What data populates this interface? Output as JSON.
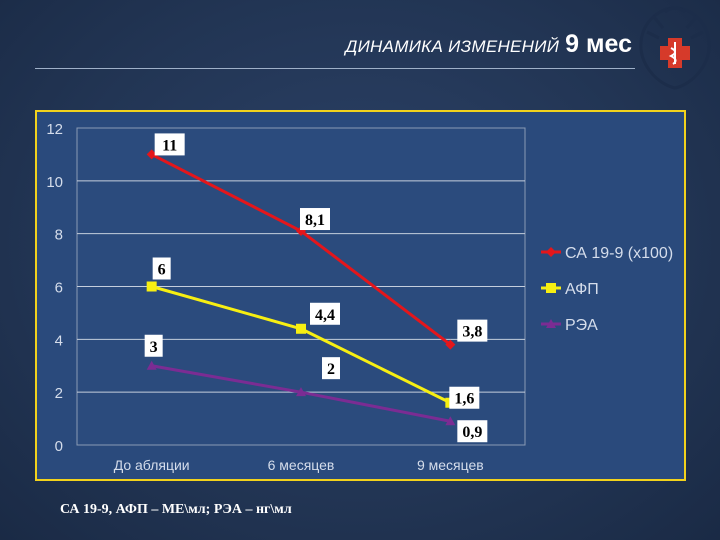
{
  "title": {
    "text": "ДИНАМИКА ИЗМЕНЕНИЙ",
    "big": "9 мес"
  },
  "emblem": {
    "icon": "medical-emblem-icon",
    "cross_color": "#d63a2a"
  },
  "footnote": "СА 19-9, АФП – МЕ\\мл; РЭА – нг\\мл",
  "colors": {
    "background": "#223554",
    "panel_border": "#f2d21c",
    "panel_fill": "#2a4a7c"
  },
  "chart_data": {
    "type": "line",
    "categories": [
      "До абляции",
      "6 месяцев",
      "9 месяцев"
    ],
    "ylim": [
      0,
      12
    ],
    "yticks": [
      "0",
      "2",
      "4",
      "6",
      "8",
      "10",
      "12"
    ],
    "grid": true,
    "legend_position": "right",
    "series": [
      {
        "name": "СА 19-9 (х100)",
        "values": [
          11,
          8.1,
          3.8
        ],
        "labels": [
          "11",
          "8,1",
          "3,8"
        ],
        "color": "#e4161b",
        "marker": "diamond"
      },
      {
        "name": "АФП",
        "values": [
          6,
          4.4,
          1.6
        ],
        "labels": [
          "6",
          "4,4",
          "1,6"
        ],
        "color": "#f7ef12",
        "marker": "square"
      },
      {
        "name": "РЭА",
        "values": [
          3,
          2,
          0.9
        ],
        "labels": [
          "3",
          "2",
          "0,9"
        ],
        "color": "#7b2c93",
        "marker": "triangle"
      }
    ]
  }
}
